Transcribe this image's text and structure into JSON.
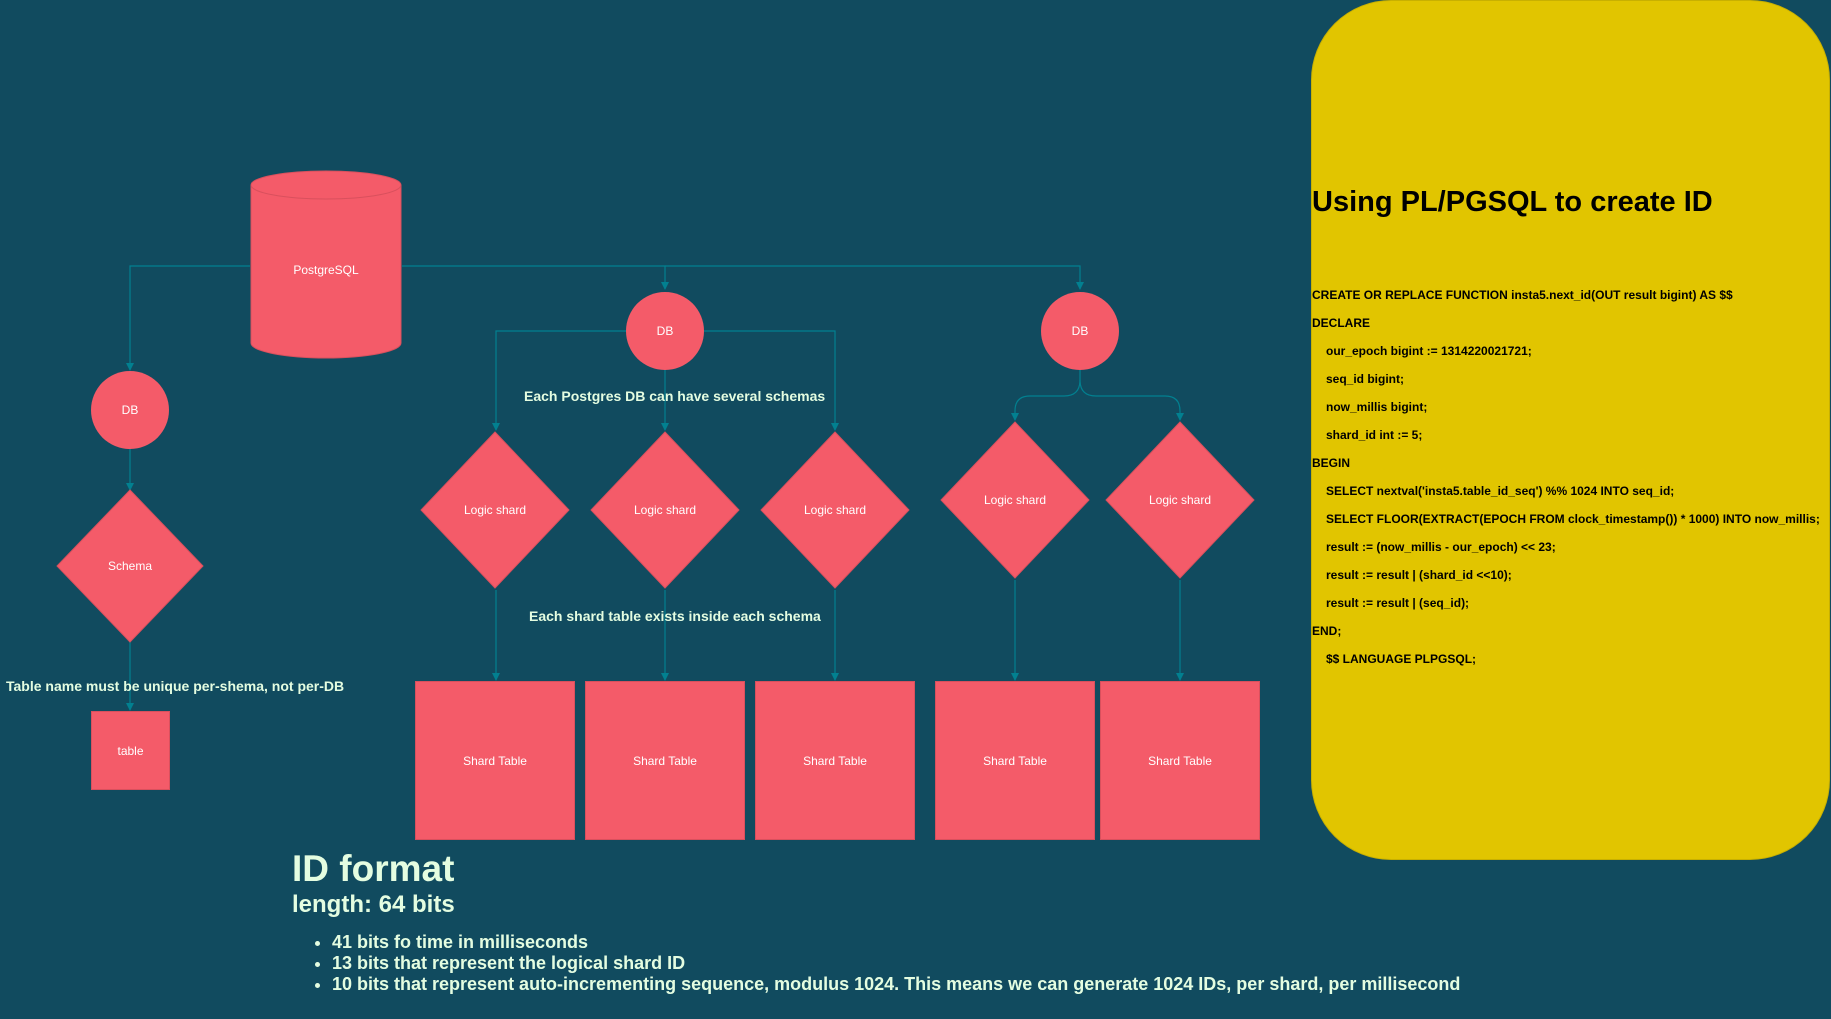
{
  "diagram": {
    "root": {
      "label": "PostgreSQL"
    },
    "databases": [
      {
        "label": "DB"
      },
      {
        "label": "DB"
      },
      {
        "label": "DB"
      }
    ],
    "schema": {
      "label": "Schema"
    },
    "table": {
      "label": "table"
    },
    "logic_shards": [
      {
        "label": "Logic shard"
      },
      {
        "label": "Logic shard"
      },
      {
        "label": "Logic shard"
      },
      {
        "label": "Logic shard"
      },
      {
        "label": "Logic shard"
      }
    ],
    "shard_tables": [
      {
        "label": "Shard Table"
      },
      {
        "label": "Shard Table"
      },
      {
        "label": "Shard Table"
      },
      {
        "label": "Shard Table"
      },
      {
        "label": "Shard Table"
      }
    ],
    "notes": {
      "schemas_note": "Each Postgres DB can have several schemas",
      "shard_table_note": "Each shard table exists inside each schema",
      "table_name_note": "Table name must be unique per-shema, not per-DB"
    }
  },
  "code_panel": {
    "title": "Using PL/PGSQL to create ID",
    "lines": [
      "CREATE OR REPLACE FUNCTION insta5.next_id(OUT result bigint) AS $$",
      "DECLARE",
      "our_epoch bigint := 1314220021721;",
      "seq_id bigint;",
      "now_millis bigint;",
      "shard_id int := 5;",
      "BEGIN",
      "SELECT nextval('insta5.table_id_seq') %% 1024 INTO seq_id;",
      "SELECT FLOOR(EXTRACT(EPOCH FROM clock_timestamp()) * 1000) INTO now_millis;",
      "result := (now_millis - our_epoch) << 23;",
      "result := result | (shard_id <<10);",
      "result := result | (seq_id);",
      "END;",
      "$$ LANGUAGE PLPGSQL;"
    ],
    "colors": {
      "background": "#E1C500",
      "text": "#000000"
    }
  },
  "id_format": {
    "title": "ID format",
    "length": "length: 64 bits",
    "bullets": [
      "41 bits fo time in milliseconds",
      "13 bits that represent the logical shard ID",
      "10 bits that represent auto-incrementing sequence, modulus 1024. This means we can generate 1024 IDs, per shard, per millisecond"
    ]
  },
  "colors": {
    "background": "#114B5F",
    "node_fill": "#F45B69",
    "edge": "#028090",
    "text": "#E4FDE1"
  }
}
